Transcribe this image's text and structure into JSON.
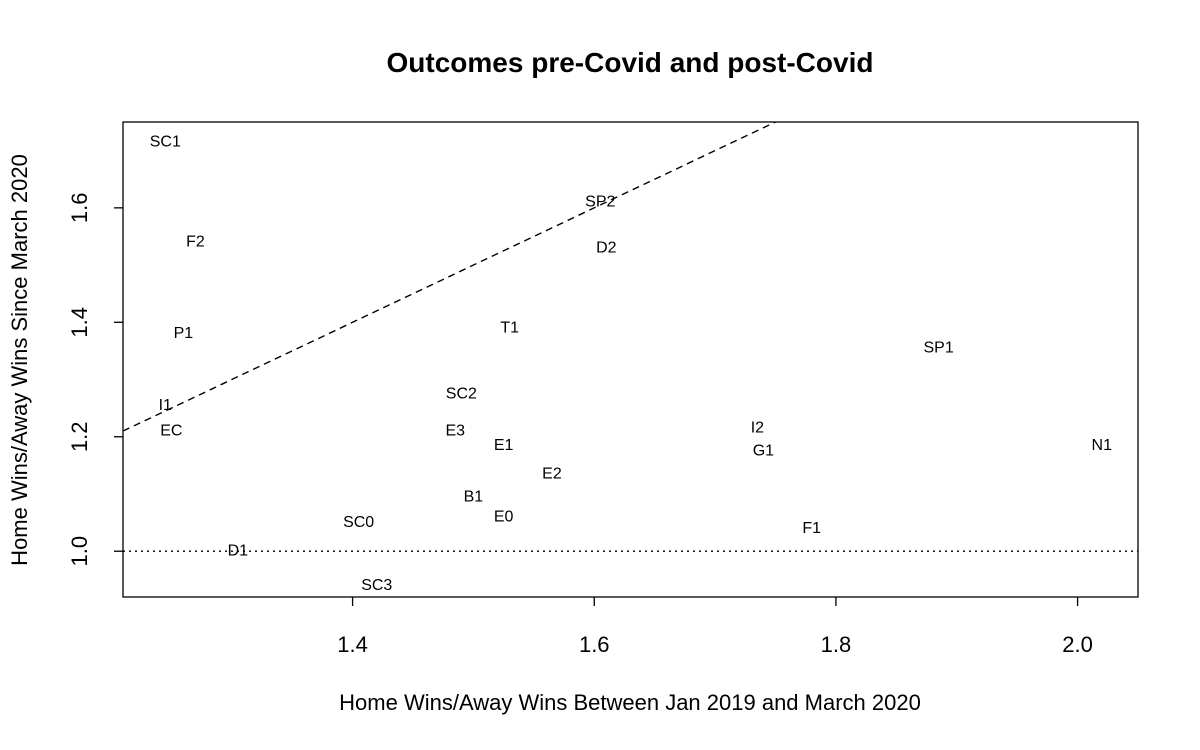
{
  "chart_data": {
    "type": "scatter",
    "title": "Outcomes pre-Covid and post-Covid",
    "xlabel": "Home Wins/Away Wins Between Jan 2019 and March 2020",
    "ylabel": "Home Wins/Away Wins Since March 2020",
    "xlim": [
      1.21,
      2.05
    ],
    "ylim": [
      0.92,
      1.75
    ],
    "x_ticks": [
      1.4,
      1.6,
      1.8,
      2.0
    ],
    "x_tick_labels": [
      "1.4",
      "1.6",
      "1.8",
      "2.0"
    ],
    "y_ticks": [
      1.0,
      1.2,
      1.4,
      1.6
    ],
    "y_tick_labels": [
      "1.0",
      "1.2",
      "1.4",
      "1.6"
    ],
    "marker": "text-label",
    "grid": false,
    "legend": "none",
    "points": [
      {
        "label": "SC1",
        "x": 1.245,
        "y": 1.715
      },
      {
        "label": "F2",
        "x": 1.27,
        "y": 1.54
      },
      {
        "label": "P1",
        "x": 1.26,
        "y": 1.38
      },
      {
        "label": "I1",
        "x": 1.245,
        "y": 1.255
      },
      {
        "label": "EC",
        "x": 1.25,
        "y": 1.21
      },
      {
        "label": "D1",
        "x": 1.305,
        "y": 1.0
      },
      {
        "label": "SC0",
        "x": 1.405,
        "y": 1.05
      },
      {
        "label": "SC3",
        "x": 1.42,
        "y": 0.94
      },
      {
        "label": "SC2",
        "x": 1.49,
        "y": 1.275
      },
      {
        "label": "E3",
        "x": 1.485,
        "y": 1.21
      },
      {
        "label": "B1",
        "x": 1.5,
        "y": 1.095
      },
      {
        "label": "T1",
        "x": 1.53,
        "y": 1.39
      },
      {
        "label": "E1",
        "x": 1.525,
        "y": 1.185
      },
      {
        "label": "E0",
        "x": 1.525,
        "y": 1.06
      },
      {
        "label": "E2",
        "x": 1.565,
        "y": 1.135
      },
      {
        "label": "SP2",
        "x": 1.605,
        "y": 1.61
      },
      {
        "label": "D2",
        "x": 1.61,
        "y": 1.53
      },
      {
        "label": "I2",
        "x": 1.735,
        "y": 1.215
      },
      {
        "label": "G1",
        "x": 1.74,
        "y": 1.175
      },
      {
        "label": "F1",
        "x": 1.78,
        "y": 1.04
      },
      {
        "label": "SP1",
        "x": 1.885,
        "y": 1.355
      },
      {
        "label": "N1",
        "x": 2.02,
        "y": 1.185
      }
    ],
    "reference_lines": [
      {
        "kind": "identity",
        "style": "dashed",
        "slope": 1,
        "intercept": 0
      },
      {
        "kind": "horizontal",
        "style": "dotted",
        "y": 1.0
      }
    ]
  }
}
